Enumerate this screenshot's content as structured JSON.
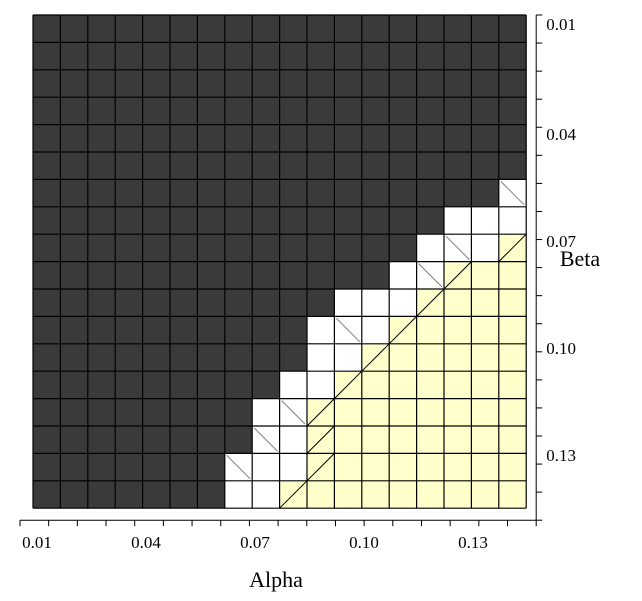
{
  "chart_data": {
    "type": "heatmap",
    "x_axis": {
      "label": "Alpha",
      "tick_labels": [
        "0.01",
        "0.04",
        "0.07",
        "0.10",
        "0.13"
      ],
      "range": [
        0.01,
        0.145
      ]
    },
    "y_axis": {
      "label": "Beta",
      "tick_labels": [
        "0.01",
        "0.04",
        "0.07",
        "0.10",
        "0.13"
      ],
      "range": [
        0.01,
        0.145
      ],
      "direction": "top-to-bottom"
    },
    "grid": true,
    "colors": {
      "dark": "#3a3a3a",
      "white": "#ffffff",
      "light": "#ffffcc",
      "grid_line": "#000000",
      "diagonal": "#808080"
    },
    "grid_size": 18,
    "cell_step": 0.0075,
    "row_boundaries": [
      {
        "row": 0,
        "dark_until_col": 18,
        "white_until_col": 18
      },
      {
        "row": 1,
        "dark_until_col": 18,
        "white_until_col": 18
      },
      {
        "row": 2,
        "dark_until_col": 18,
        "white_until_col": 18
      },
      {
        "row": 3,
        "dark_until_col": 18,
        "white_until_col": 18
      },
      {
        "row": 4,
        "dark_until_col": 18,
        "white_until_col": 18
      },
      {
        "row": 5,
        "dark_until_col": 18,
        "white_until_col": 18
      },
      {
        "row": 6,
        "dark_until_col": 17,
        "white_until_col": 18
      },
      {
        "row": 7,
        "dark_until_col": 15,
        "white_until_col": 18
      },
      {
        "row": 8,
        "dark_until_col": 14,
        "white_until_col": 17
      },
      {
        "row": 9,
        "dark_until_col": 13,
        "white_until_col": 15
      },
      {
        "row": 10,
        "dark_until_col": 11,
        "white_until_col": 14
      },
      {
        "row": 11,
        "dark_until_col": 10,
        "white_until_col": 13
      },
      {
        "row": 12,
        "dark_until_col": 10,
        "white_until_col": 12
      },
      {
        "row": 13,
        "dark_until_col": 9,
        "white_until_col": 11
      },
      {
        "row": 14,
        "dark_until_col": 8,
        "white_until_col": 10
      },
      {
        "row": 15,
        "dark_until_col": 8,
        "white_until_col": 10
      },
      {
        "row": 16,
        "dark_until_col": 7,
        "white_until_col": 10
      },
      {
        "row": 17,
        "dark_until_col": 7,
        "white_until_col": 9
      }
    ],
    "diagonal_markers": [
      {
        "row": 6,
        "col": 17
      },
      {
        "row": 8,
        "col": 15
      },
      {
        "row": 9,
        "col": 14
      },
      {
        "row": 11,
        "col": 11
      },
      {
        "row": 14,
        "col": 9
      },
      {
        "row": 15,
        "col": 8
      },
      {
        "row": 16,
        "col": 7
      }
    ]
  }
}
